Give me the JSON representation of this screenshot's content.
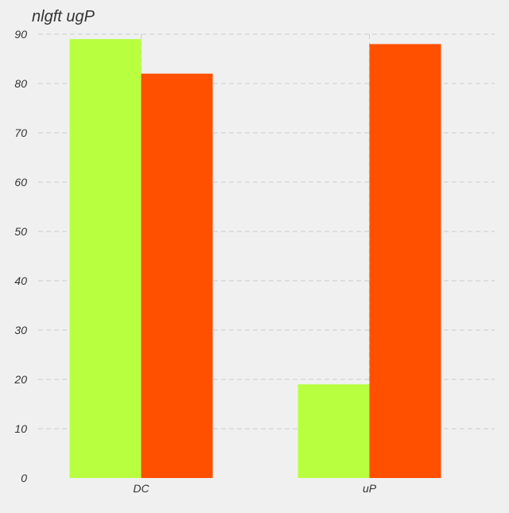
{
  "chart_data": {
    "type": "bar",
    "title": "nlgft ugP",
    "categories": [
      "DC",
      "uP"
    ],
    "series": [
      {
        "values": [
          89,
          19
        ],
        "color": "#b8ff40"
      },
      {
        "values": [
          82,
          88
        ],
        "color": "#ff5000"
      }
    ],
    "ylim": [
      0,
      90
    ],
    "yticks": [
      0,
      10,
      20,
      30,
      40,
      50,
      60,
      70,
      80,
      90
    ],
    "grid": true,
    "background": "#f0f0f0",
    "grid_color": "#cccccc",
    "text_color": "#333333"
  }
}
